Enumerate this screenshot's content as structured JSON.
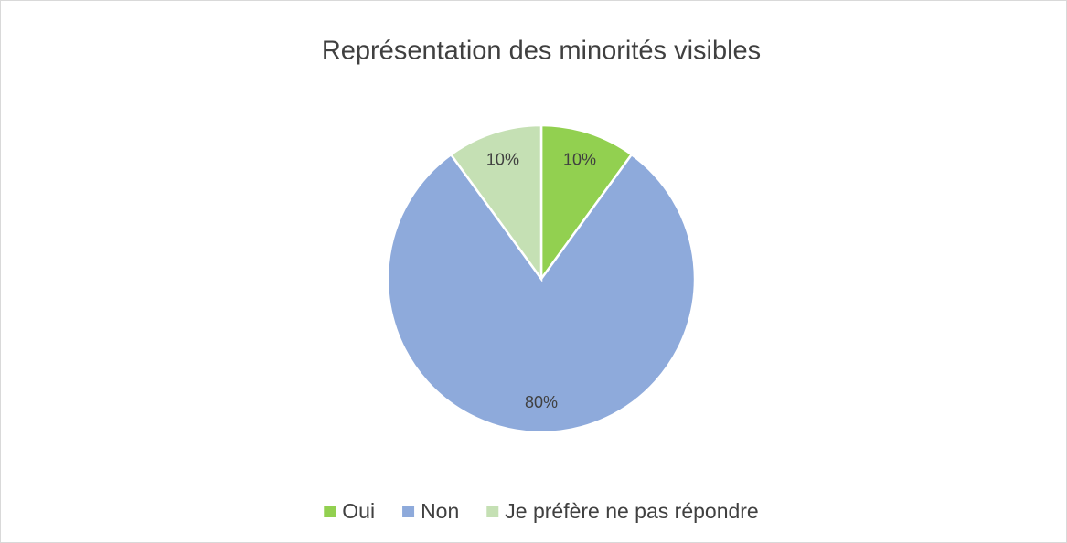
{
  "chart_data": {
    "type": "pie",
    "title": "Représentation des minorités visibles",
    "categories": [
      "Oui",
      "Non",
      "Je préfère ne pas répondre"
    ],
    "values": [
      10,
      80,
      10
    ],
    "value_labels": [
      "10%",
      "80%",
      "10%"
    ],
    "colors": [
      "#92d050",
      "#8eaadb",
      "#c5e0b4"
    ],
    "legend": "bottom"
  }
}
